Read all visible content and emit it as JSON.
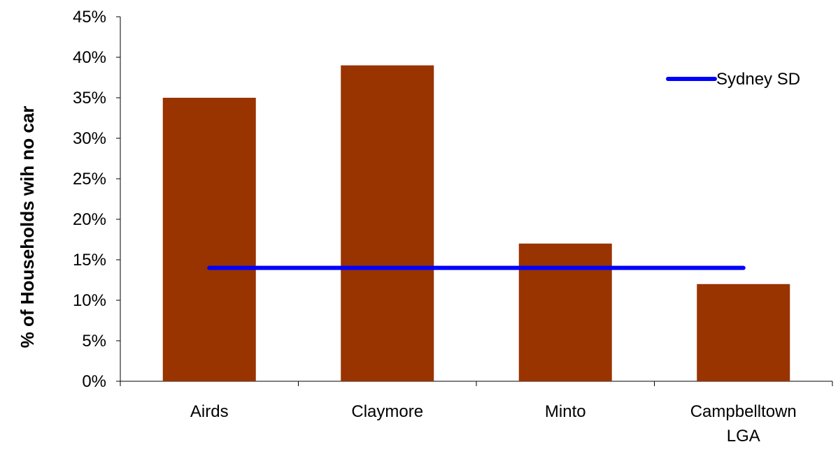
{
  "chart_data": {
    "type": "bar",
    "categories": [
      "Airds",
      "Claymore",
      "Minto",
      "Campbelltown LGA"
    ],
    "category_lines": [
      [
        "Airds"
      ],
      [
        "Claymore"
      ],
      [
        "Minto"
      ],
      [
        "Campbelltown",
        "LGA"
      ]
    ],
    "series": [
      {
        "values": [
          0.35,
          0.39,
          0.17,
          0.12
        ],
        "color": "#993300"
      }
    ],
    "reference_line": {
      "name": "Sydney SD",
      "value": 0.14,
      "color": "#0000ff"
    },
    "ylabel": "% of Households wih no car",
    "xlabel": "",
    "ylim": [
      0,
      0.45
    ],
    "yticks": [
      0,
      0.05,
      0.1,
      0.15,
      0.2,
      0.25,
      0.3,
      0.35,
      0.4,
      0.45
    ],
    "ytick_labels": [
      "0%",
      "5%",
      "10%",
      "15%",
      "20%",
      "25%",
      "30%",
      "35%",
      "40%",
      "45%"
    ],
    "grid": false,
    "legend_position": "top-right"
  }
}
